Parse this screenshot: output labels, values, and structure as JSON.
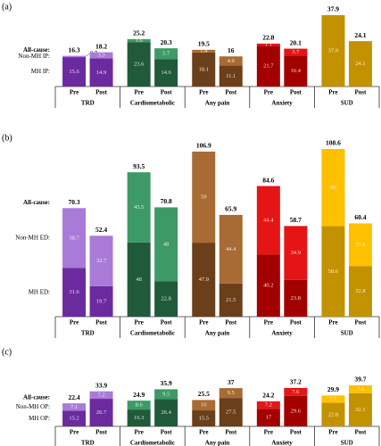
{
  "chart_data": [
    {
      "type": "bar",
      "stacked": true,
      "panel_label": "(a)",
      "groups": [
        "TRD",
        "Cardiometabolic",
        "Any pain",
        "Anxiety",
        "SUD"
      ],
      "categories": [
        "Pre",
        "Post",
        "Pre",
        "Post",
        "Pre",
        "Post",
        "Pre",
        "Post",
        "Pre",
        "Post"
      ],
      "series": [
        {
          "name": "MH IP:",
          "values": [
            15.6,
            14.9,
            23.6,
            14.6,
            18.1,
            11.1,
            21.7,
            16.4,
            37.9,
            24.1
          ]
        },
        {
          "name": "Non-MH IP:",
          "values": [
            0.7,
            3.3,
            1.6,
            5.7,
            1.4,
            4.9,
            1.1,
            3.7,
            null,
            null
          ]
        }
      ],
      "totals": {
        "name": "All-cause:",
        "values": [
          16.3,
          18.2,
          25.2,
          20.3,
          19.5,
          16.0,
          22.8,
          20.1,
          37.9,
          24.1
        ]
      },
      "group_colors": [
        [
          "#6b2a9e",
          "#a97ad8"
        ],
        [
          "#1f5a3a",
          "#3d9a66"
        ],
        [
          "#6a3f1a",
          "#a86b33"
        ],
        [
          "#a30000",
          "#e51515"
        ],
        [
          "#c39200",
          "#e2b000"
        ]
      ]
    },
    {
      "type": "bar",
      "stacked": true,
      "panel_label": "(b)",
      "groups": [
        "TRD",
        "Cardiometabolic",
        "Any pain",
        "Anxiety",
        "SUD"
      ],
      "categories": [
        "Pre",
        "Post",
        "Pre",
        "Post",
        "Pre",
        "Post",
        "Pre",
        "Post",
        "Pre",
        "Post"
      ],
      "series": [
        {
          "name": "MH ED:",
          "values": [
            31.6,
            19.7,
            48.0,
            22.8,
            47.9,
            21.5,
            40.2,
            23.8,
            58.6,
            32.8
          ]
        },
        {
          "name": "Non-MH ED:",
          "values": [
            38.7,
            32.7,
            45.5,
            48.0,
            59.0,
            44.4,
            44.4,
            34.9,
            50.0,
            27.6
          ]
        }
      ],
      "totals": {
        "name": "All-cause:",
        "values": [
          70.3,
          52.4,
          93.5,
          70.8,
          106.9,
          65.9,
          84.6,
          58.7,
          108.6,
          60.4
        ]
      },
      "group_colors": [
        [
          "#6b2a9e",
          "#a97ad8"
        ],
        [
          "#1f5a3a",
          "#3d9a66"
        ],
        [
          "#6a3f1a",
          "#a86b33"
        ],
        [
          "#a30000",
          "#e51515"
        ],
        [
          "#c39200",
          "#ffc000"
        ]
      ]
    },
    {
      "type": "bar",
      "stacked": true,
      "panel_label": "(c)",
      "groups": [
        "TRD",
        "Cardiometabolic",
        "Any pain",
        "Anxiety",
        "SUD"
      ],
      "categories": [
        "Pre",
        "Post",
        "Pre",
        "Post",
        "Pre",
        "Post",
        "Pre",
        "Post",
        "Pre",
        "Post"
      ],
      "series": [
        {
          "name": "MH OP:",
          "values": [
            15.2,
            26.7,
            16.3,
            26.4,
            15.5,
            27.5,
            17.0,
            29.6,
            22.8,
            32.1
          ]
        },
        {
          "name": "Non-MH OP:",
          "values": [
            7.1,
            7.2,
            8.6,
            9.5,
            10.0,
            9.5,
            7.2,
            7.6,
            7.1,
            7.6
          ]
        }
      ],
      "totals": {
        "name": "All-cause:",
        "values": [
          22.4,
          33.9,
          24.9,
          35.9,
          25.5,
          37.0,
          24.2,
          37.2,
          29.9,
          39.7
        ]
      },
      "group_colors": [
        [
          "#6b2a9e",
          "#a97ad8"
        ],
        [
          "#1f5a3a",
          "#3d9a66"
        ],
        [
          "#6a3f1a",
          "#a86b33"
        ],
        [
          "#a30000",
          "#e51515"
        ],
        [
          "#c39200",
          "#ffc000"
        ]
      ]
    }
  ]
}
